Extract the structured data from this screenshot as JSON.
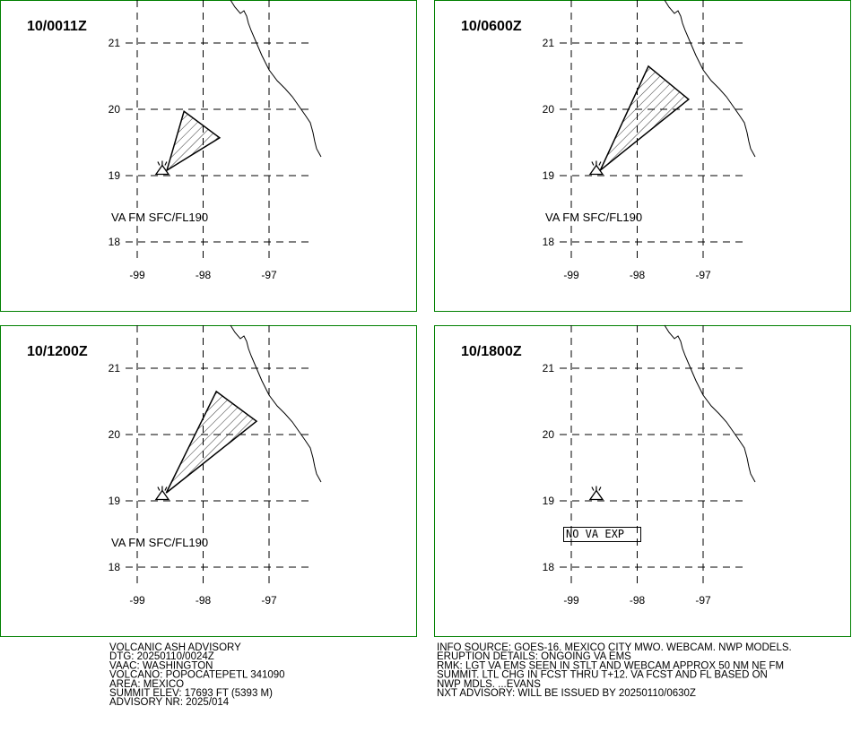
{
  "lat_ticks": [
    21,
    20,
    19,
    18
  ],
  "lon_ticks": [
    -99,
    -98,
    -97
  ],
  "volcano": [
    -98.62,
    19.02
  ],
  "panels": [
    {
      "time": "10/0011Z",
      "label": "VA FM SFC/FL190",
      "ash": [
        [
          -98.55,
          19.08
        ],
        [
          -98.29,
          19.97
        ],
        [
          -97.75,
          19.57
        ]
      ]
    },
    {
      "time": "10/0600Z",
      "label": "VA FM SFC/FL190",
      "ash": [
        [
          -98.56,
          19.08
        ],
        [
          -97.83,
          20.65
        ],
        [
          -97.22,
          20.15
        ]
      ]
    },
    {
      "time": "10/1200Z",
      "label": "VA FM SFC/FL190",
      "ash": [
        [
          -98.56,
          19.12
        ],
        [
          -97.8,
          20.65
        ],
        [
          -97.19,
          20.2
        ]
      ]
    },
    {
      "time": "10/1800Z",
      "label": "NO VA EXP",
      "ash": []
    }
  ],
  "advisory_left": [
    "VOLCANIC ASH ADVISORY",
    "DTG: 20250110/0024Z",
    "VAAC: WASHINGTON",
    "VOLCANO: POPOCATEPETL 341090",
    "AREA: MEXICO",
    "SUMMIT ELEV: 17693 FT (5393 M)",
    "ADVISORY NR: 2025/014"
  ],
  "advisory_right": [
    "INFO SOURCE: GOES-16. MEXICO CITY MWO. WEBCAM. NWP MODELS.",
    "ERUPTION DETAILS: ONGOING VA EMS",
    "RMK: LGT VA EMS SEEN IN STLT AND WEBCAM APPROX 50 NM NE FM",
    "SUMMIT. LTL CHG IN FCST THRU T+12. VA FCST AND FL BASED ON",
    "NWP MDLS. ...EVANS",
    "NXT ADVISORY: WILL BE ISSUED BY 20250110/0630Z"
  ]
}
